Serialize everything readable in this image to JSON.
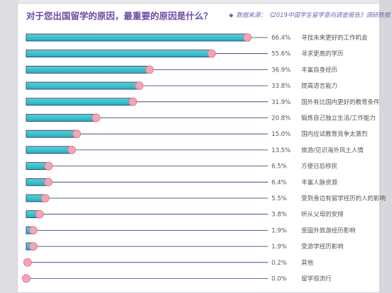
{
  "header": {
    "title": "对于您出国留学的原因，最重要的原因是什么？",
    "source_prefix": "数据来源：《",
    "source_year": "2019",
    "source_name": "中国学生留学意向调查报告",
    "source_suffix": "》调研数据"
  },
  "colors": {
    "bar_fill_start": "#5fd0d4",
    "bar_fill_end": "#1fb0bd",
    "bar_track": "#ffffff",
    "bar_border": "#2e2c73",
    "dot": "#f2a6b5",
    "dot_border": "#e27c93",
    "title": "#6a4aa3"
  },
  "chart_data": {
    "type": "bar",
    "orientation": "horizontal",
    "unit": "%",
    "xlim": [
      0,
      100
    ],
    "categories": [
      "寻找未来更好的工作机会",
      "寻求更高的学历",
      "丰富自身经历",
      "提高语言能力",
      "国外有比国内更好的教育条件",
      "锻炼自己独立生活/工作能力",
      "国内应试教育竞争太激烈",
      "旅游/见识海外风土人情",
      "方便日后移民",
      "丰富人脉资源",
      "受到身边有留学经历的人的影响",
      "听从父母的安排",
      "受国外旅游经历影响",
      "受游学经历影响",
      "其他",
      "留学很流行"
    ],
    "values": [
      66.4,
      55.6,
      36.9,
      33.8,
      31.9,
      20.8,
      15.0,
      13.5,
      6.5,
      6.4,
      5.5,
      3.8,
      1.9,
      1.9,
      0.2,
      0.0
    ],
    "value_labels": [
      "66.4%",
      "55.6%",
      "36.9%",
      "33.8%",
      "31.9%",
      "20.8%",
      "15.0%",
      "13.5%",
      "6.5%",
      "6.4%",
      "5.5%",
      "3.8%",
      "1.9%",
      "1.9%",
      "0.2%",
      "0.0%"
    ]
  }
}
